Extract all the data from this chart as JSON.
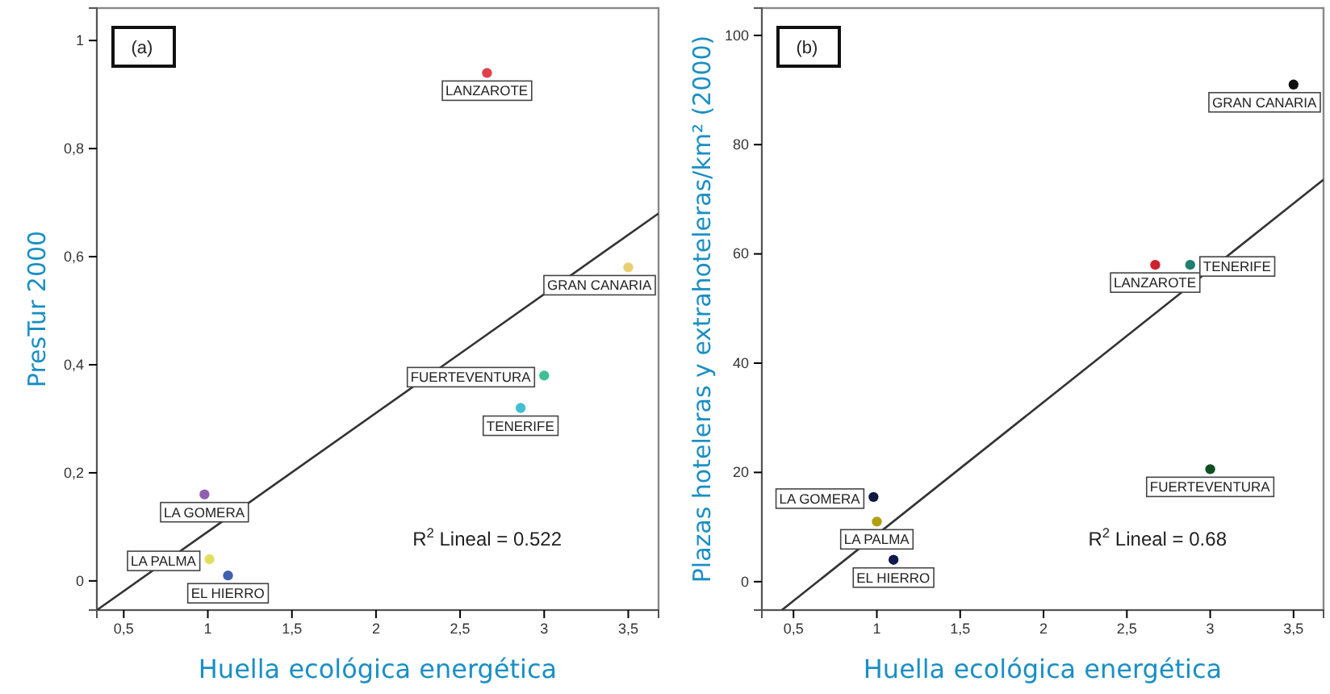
{
  "chart_data": [
    {
      "type": "scatter",
      "xlabel": "Huella ecológica energética",
      "ylabel": "PresTur 2000",
      "xlim": [
        0.34,
        3.68
      ],
      "ylim": [
        -0.054,
        1.06
      ],
      "xticks": [
        {
          "value": 0.5,
          "label": "0,5"
        },
        1,
        {
          "value": 1.5,
          "label": "1,5"
        },
        2,
        {
          "value": 2.5,
          "label": "2,5"
        },
        3,
        {
          "value": 3.5,
          "label": "3,5"
        }
      ],
      "yticks": [
        0,
        {
          "value": 0.2,
          "label": "0,2"
        },
        {
          "value": 0.4,
          "label": "0,4"
        },
        {
          "value": 0.6,
          "label": "0,6"
        },
        {
          "value": 0.8,
          "label": "0,8"
        },
        1
      ],
      "grid": false,
      "series": [
        {
          "marker": "circle",
          "x": [
            2.66,
            3.5,
            3.0,
            2.86,
            0.98,
            1.01,
            1.12
          ],
          "values": [
            0.94,
            0.58,
            0.38,
            0.32,
            0.16,
            0.04,
            0.01
          ],
          "colors": [
            "#e0404a",
            "#e8d070",
            "#40c090",
            "#40c0d0",
            "#9060b0",
            "#e0e060",
            "#4060b0"
          ]
        },
        {
          "type": "line",
          "x": [
            0.34,
            3.68
          ],
          "values": [
            -0.054,
            0.68
          ],
          "color": "#333333"
        }
      ],
      "annotations": [
        "(a)",
        "R$^{2}$ Lineal = 0.522",
        {
          "text": "LANZAROTE",
          "x": 2.66,
          "y": 0.94
        },
        {
          "text": "GRAN CANARIA",
          "x": 3.5,
          "y": 0.58
        },
        {
          "text": "FUERTEVENTURA",
          "x": 3.0,
          "y": 0.38
        },
        {
          "text": "TENERIFE",
          "x": 2.86,
          "y": 0.32
        },
        {
          "text": "LA GOMERA",
          "x": 0.98,
          "y": 0.16
        },
        {
          "text": "LA PALMA",
          "x": 1.01,
          "y": 0.04
        },
        {
          "text": "EL HIERRO",
          "x": 1.12,
          "y": 0.01
        }
      ]
    },
    {
      "type": "scatter",
      "xlabel": "Huella ecológica energética",
      "ylabel": "Plazas hoteleras y extrahoteleras/km² (2000)",
      "xlim": [
        0.31,
        3.68
      ],
      "ylim": [
        -5.2,
        105
      ],
      "xticks": [
        {
          "value": 0.5,
          "label": "0,5"
        },
        1,
        {
          "value": 1.5,
          "label": "1,5"
        },
        2,
        {
          "value": 2.5,
          "label": "2,5"
        },
        3,
        {
          "value": 3.5,
          "label": "3,5"
        }
      ],
      "yticks": [
        0,
        20,
        40,
        60,
        80,
        100
      ],
      "grid": false,
      "series": [
        {
          "marker": "circle",
          "x": [
            3.5,
            2.67,
            2.88,
            0.98,
            1.0,
            1.1,
            3.0
          ],
          "values": [
            91,
            58,
            58,
            15.5,
            11,
            4,
            20.6
          ],
          "colors": [
            "#111111",
            "#d02030",
            "#208070",
            "#101840",
            "#b0a010",
            "#101850",
            "#105020"
          ]
        },
        {
          "type": "line",
          "x": [
            0.43,
            3.68
          ],
          "values": [
            -5.2,
            73.6
          ],
          "color": "#333333"
        }
      ],
      "annotations": [
        "(b)",
        "R$^{2}$ Lineal = 0.68",
        {
          "text": "GRAN CANARIA",
          "x": 3.5,
          "y": 91
        },
        {
          "text": "LANZAROTE",
          "x": 2.67,
          "y": 58
        },
        {
          "text": "TENERIFE",
          "x": 2.88,
          "y": 58
        },
        {
          "text": "LA GOMERA",
          "x": 0.98,
          "y": 15.5
        },
        {
          "text": "LA PALMA",
          "x": 1.0,
          "y": 11
        },
        {
          "text": "EL HIERRO",
          "x": 1.1,
          "y": 4
        },
        {
          "text": "FUERTEVENTURA",
          "x": 3.0,
          "y": 20.6
        }
      ]
    }
  ]
}
